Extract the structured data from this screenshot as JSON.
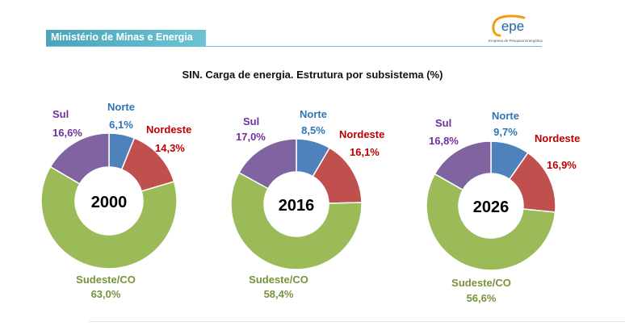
{
  "header": {
    "ministry": "Ministério de Minas e Energia",
    "logo_text": "epe",
    "logo_subtitle": "Empresa de Pesquisa Energética"
  },
  "title": "SIN. Carga de energia. Estrutura por subsistema (%)",
  "colors": {
    "norte": "#4f81bd",
    "nordeste": "#c0504d",
    "sudeste": "#9bbb59",
    "sul": "#8064a2",
    "norte_text": "#2e75b6",
    "nordeste_text": "#c00000",
    "sudeste_text": "#77933c",
    "sul_text": "#7030a0",
    "header_bar": "#5bb3c6",
    "logo_orange": "#f39c12"
  },
  "chart_data": [
    {
      "type": "pie",
      "center_label": "2000",
      "categories": [
        "Norte",
        "Nordeste",
        "Sudeste/CO",
        "Sul"
      ],
      "values": [
        6.1,
        14.3,
        63.0,
        16.6
      ],
      "value_labels": [
        "6,1%",
        "14,3%",
        "63,0%",
        "16,6%"
      ]
    },
    {
      "type": "pie",
      "center_label": "2016",
      "categories": [
        "Norte",
        "Nordeste",
        "Sudeste/CO",
        "Sul"
      ],
      "values": [
        8.5,
        16.1,
        58.4,
        17.0
      ],
      "value_labels": [
        "8,5%",
        "16,1%",
        "58,4%",
        "17,0%"
      ]
    },
    {
      "type": "pie",
      "center_label": "2026",
      "categories": [
        "Norte",
        "Nordeste",
        "Sudeste/CO",
        "Sul"
      ],
      "values": [
        9.7,
        16.9,
        56.6,
        16.8
      ],
      "value_labels": [
        "9,7%",
        "16,9%",
        "56,6%",
        "16,8%"
      ]
    }
  ]
}
